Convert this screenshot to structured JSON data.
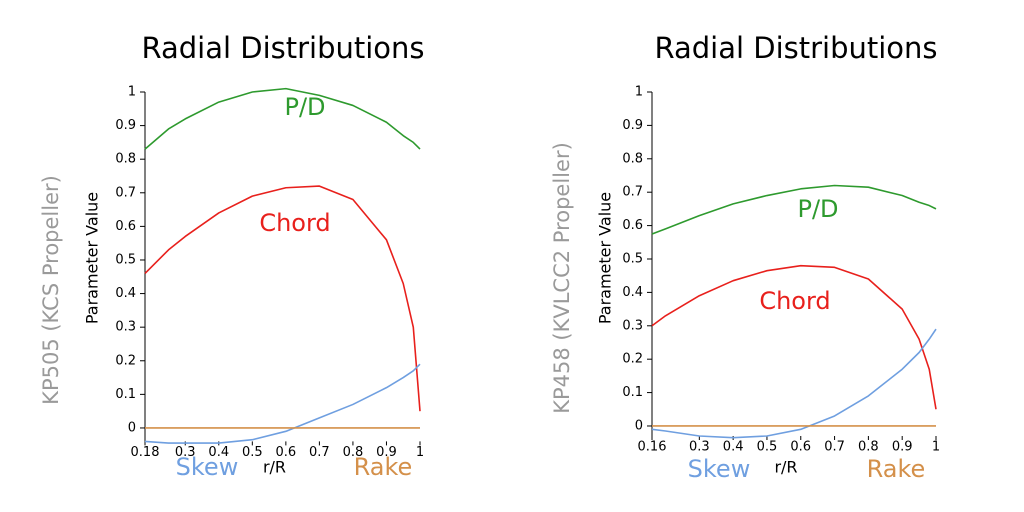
{
  "chart_data": [
    {
      "type": "line",
      "title": "Radial Distributions",
      "side_label": "KP505 (KCS Propeller)",
      "xlabel": "r/R",
      "ylabel": "Parameter Value",
      "x": [
        0.18,
        0.25,
        0.3,
        0.4,
        0.5,
        0.6,
        0.7,
        0.8,
        0.9,
        0.95,
        0.98,
        1.0
      ],
      "series": [
        {
          "name": "P/D",
          "color": "#2e9a2e",
          "values": [
            0.83,
            0.89,
            0.92,
            0.97,
            1.0,
            1.01,
            0.99,
            0.96,
            0.91,
            0.87,
            0.85,
            0.83
          ]
        },
        {
          "name": "Chord",
          "color": "#e8201c",
          "values": [
            0.46,
            0.53,
            0.57,
            0.64,
            0.69,
            0.715,
            0.72,
            0.68,
            0.56,
            0.43,
            0.3,
            0.05
          ]
        },
        {
          "name": "Skew",
          "color": "#6f9fe0",
          "values": [
            -0.04,
            -0.045,
            -0.045,
            -0.045,
            -0.035,
            -0.01,
            0.03,
            0.07,
            0.12,
            0.15,
            0.17,
            0.19
          ]
        },
        {
          "name": "Rake",
          "color": "#d4904a",
          "values": [
            0,
            0,
            0,
            0,
            0,
            0,
            0,
            0,
            0,
            0,
            0,
            0
          ]
        }
      ],
      "xlim": [
        0.18,
        1
      ],
      "ylim": [
        -0.04,
        1
      ],
      "xticks": [
        0.18,
        0.3,
        0.4,
        0.5,
        0.6,
        0.7,
        0.8,
        0.9,
        1
      ],
      "yticks": [
        0,
        0.1,
        0.2,
        0.3,
        0.4,
        0.5,
        0.6,
        0.7,
        0.8,
        0.9,
        1
      ]
    },
    {
      "type": "line",
      "title": "Radial Distributions",
      "side_label": "KP458 (KVLCC2 Propeller)",
      "xlabel": "r/R",
      "ylabel": "Parameter Value",
      "x": [
        0.16,
        0.2,
        0.3,
        0.4,
        0.5,
        0.6,
        0.7,
        0.8,
        0.9,
        0.95,
        0.98,
        1.0
      ],
      "series": [
        {
          "name": "P/D",
          "color": "#2e9a2e",
          "values": [
            0.575,
            0.59,
            0.63,
            0.665,
            0.69,
            0.71,
            0.72,
            0.715,
            0.69,
            0.67,
            0.66,
            0.65
          ]
        },
        {
          "name": "Chord",
          "color": "#e8201c",
          "values": [
            0.3,
            0.33,
            0.39,
            0.435,
            0.465,
            0.48,
            0.475,
            0.44,
            0.35,
            0.26,
            0.17,
            0.05
          ]
        },
        {
          "name": "Skew",
          "color": "#6f9fe0",
          "values": [
            -0.01,
            -0.015,
            -0.03,
            -0.035,
            -0.03,
            -0.01,
            0.03,
            0.09,
            0.17,
            0.22,
            0.26,
            0.29
          ]
        },
        {
          "name": "Rake",
          "color": "#d4904a",
          "values": [
            0,
            0,
            0,
            0,
            0,
            0,
            0,
            0,
            0,
            0,
            0,
            0
          ]
        }
      ],
      "xlim": [
        0.16,
        1
      ],
      "ylim": [
        -0.03,
        1
      ],
      "xticks": [
        0.16,
        0.3,
        0.4,
        0.5,
        0.6,
        0.7,
        0.8,
        0.9,
        1
      ],
      "yticks": [
        0,
        0.1,
        0.2,
        0.3,
        0.4,
        0.5,
        0.6,
        0.7,
        0.8,
        0.9,
        1
      ]
    }
  ]
}
